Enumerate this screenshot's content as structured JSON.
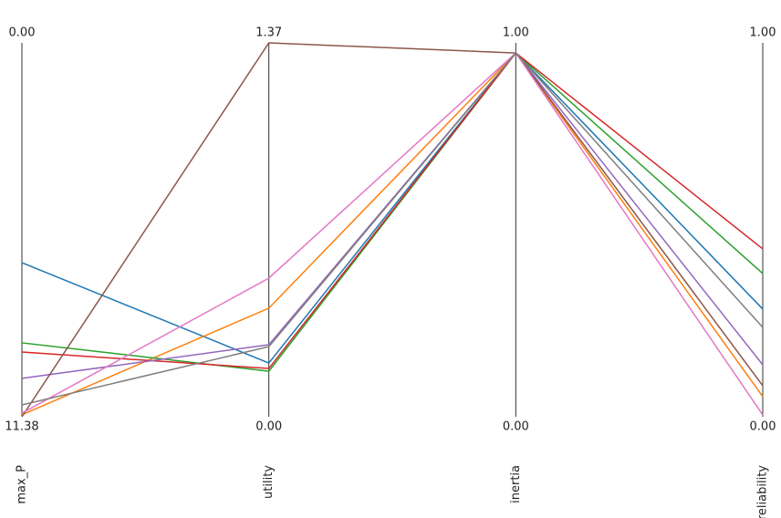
{
  "chart_data": {
    "type": "parallel",
    "dimensions": [
      {
        "name": "max_P",
        "ylim": [
          11.38,
          0
        ],
        "yticks": [
          {
            "value": 11.38,
            "label": "11.38"
          },
          {
            "value": 0,
            "label": "0.00"
          }
        ]
      },
      {
        "name": "utility",
        "ylim": [
          0,
          1.37
        ],
        "yticks": [
          {
            "value": 0,
            "label": "0.00"
          },
          {
            "value": 1.37,
            "label": "1.37"
          }
        ]
      },
      {
        "name": "inertia",
        "ylim": [
          0,
          1
        ],
        "yticks": [
          {
            "value": 0,
            "label": "0.00"
          },
          {
            "value": 1,
            "label": "1.00"
          }
        ]
      },
      {
        "name": "reliability",
        "ylim": [
          0,
          1
        ],
        "yticks": [
          {
            "value": 0,
            "label": "0.00"
          },
          {
            "value": 1,
            "label": "1.00"
          }
        ]
      }
    ],
    "series": [
      {
        "color": "#1f77b4",
        "values": [
          6.69,
          0.197,
          0.973,
          0.288
        ]
      },
      {
        "color": "#ff7f0e",
        "values": [
          11.32,
          0.398,
          0.973,
          0.054
        ]
      },
      {
        "color": "#2ca02c",
        "values": [
          9.13,
          0.167,
          0.973,
          0.383
        ]
      },
      {
        "color": "#d62728",
        "values": [
          9.41,
          0.177,
          0.973,
          0.449
        ]
      },
      {
        "color": "#9467bd",
        "values": [
          10.21,
          0.264,
          0.973,
          0.139
        ]
      },
      {
        "color": "#8c564b",
        "values": [
          11.38,
          1.37,
          0.973,
          0.083
        ]
      },
      {
        "color": "#e377c2",
        "values": [
          11.27,
          0.508,
          0.973,
          0.005
        ]
      },
      {
        "color": "#7f7f7f",
        "values": [
          11.02,
          0.257,
          0.973,
          0.239
        ]
      }
    ]
  }
}
